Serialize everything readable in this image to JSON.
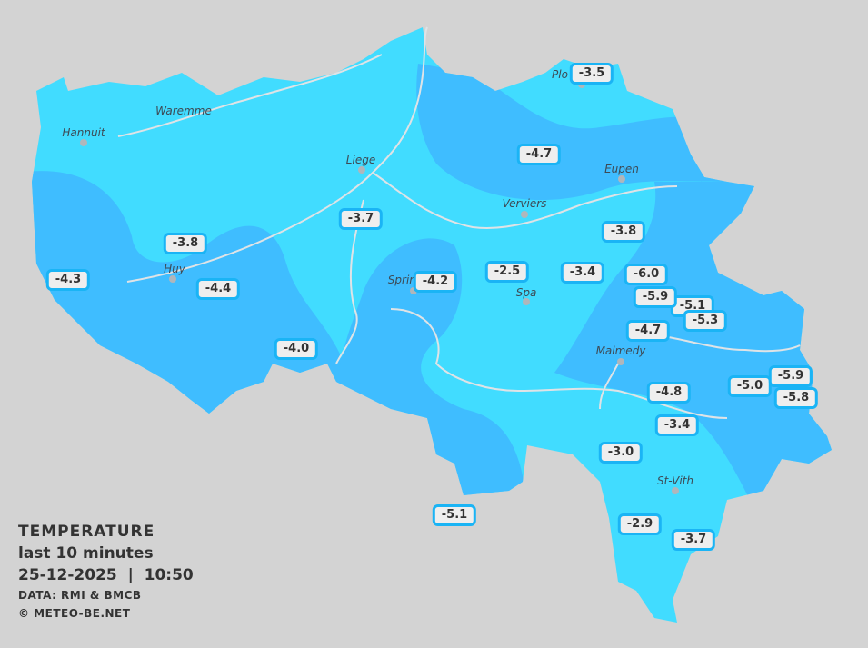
{
  "colors": {
    "background": "#d3d3d3",
    "warmer_zone": "#41dcff",
    "colder_zone": "#3fbdff",
    "label_border": "#1ab4f5",
    "label_bg": "#eeeeee"
  },
  "legend": {
    "title": "TEMPERATURE",
    "period": "last 10 minutes",
    "datetime": "25-12-2025  |  10:50",
    "source": "DATA: RMI & BMCB",
    "copyright": "© METEO-BE.NET"
  },
  "cities": [
    {
      "name": "Hannuit"
    },
    {
      "name": "Waremme"
    },
    {
      "name": "Liege"
    },
    {
      "name": "Verviers"
    },
    {
      "name": "Eupen"
    },
    {
      "name": "Huy"
    },
    {
      "name": "Sprir"
    },
    {
      "name": "Spa"
    },
    {
      "name": "Malmedy"
    },
    {
      "name": "St-Vith"
    },
    {
      "name": "Plo"
    }
  ],
  "stations": [
    {
      "value": "-3.5"
    },
    {
      "value": "-4.7"
    },
    {
      "value": "-3.8"
    },
    {
      "value": "-3.7"
    },
    {
      "value": "-3.8"
    },
    {
      "value": "-4.3"
    },
    {
      "value": "-4.4"
    },
    {
      "value": "-4.2"
    },
    {
      "value": "-2.5"
    },
    {
      "value": "-3.4"
    },
    {
      "value": "-6.0"
    },
    {
      "value": "-5.9"
    },
    {
      "value": "-5.1"
    },
    {
      "value": "-5.3"
    },
    {
      "value": "-4.7"
    },
    {
      "value": "-4.0"
    },
    {
      "value": "-4.8"
    },
    {
      "value": "-5.0"
    },
    {
      "value": "-5.9"
    },
    {
      "value": "-5.8"
    },
    {
      "value": "-3.4"
    },
    {
      "value": "-3.0"
    },
    {
      "value": "-5.1"
    },
    {
      "value": "-2.9"
    },
    {
      "value": "-3.7"
    }
  ]
}
